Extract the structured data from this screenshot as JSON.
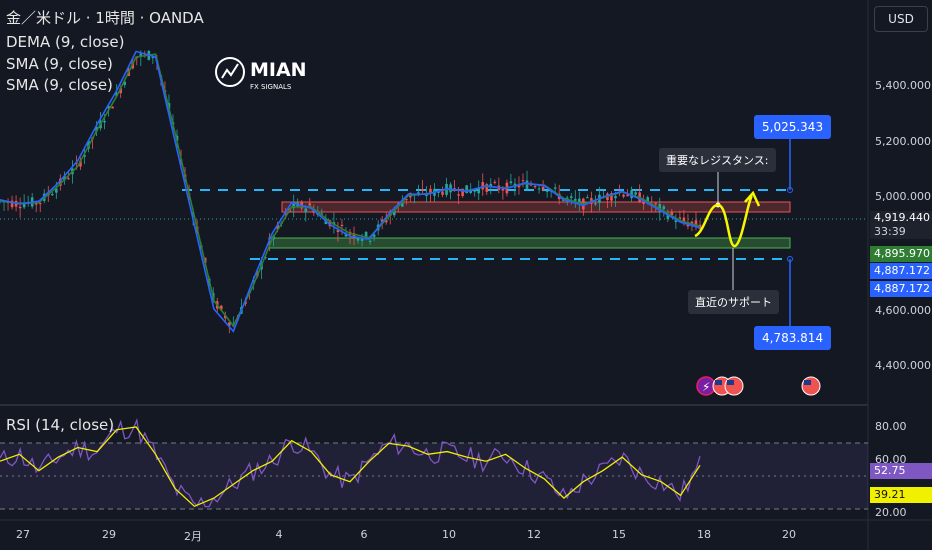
{
  "header": {
    "title": "金／米ドル · 1時間 · OANDA",
    "indicators": [
      "DEMA (9, close)",
      "SMA (9, close)",
      "SMA (9, close)"
    ],
    "currency": "USD"
  },
  "logo": {
    "name": "MIAN",
    "sub": "FX SIGNALS"
  },
  "rsi": {
    "label": "RSI (14, close)",
    "ticks": [
      "80.00",
      "60.00",
      "20.00"
    ],
    "value": "52.75",
    "ma_value": "39.21",
    "value_color": "#7e57c2",
    "ma_color": "#f0f000"
  },
  "price_axis": {
    "ticks": [
      "5,400.000",
      "5,200.000",
      "5,000.000",
      "4,600.000",
      "4,400.000"
    ],
    "current_price": "4,919.440",
    "countdown": "33:39",
    "tag_green": "4,895.970",
    "tag_blue1": "4,887.172",
    "tag_blue2": "4,887.172"
  },
  "annotations": {
    "resistance_label": "重要なレジスタンス:",
    "support_label": "直近のサポート",
    "upper_target": "5,025.343",
    "lower_target": "4,783.814"
  },
  "colors": {
    "up": "#26a69a",
    "down": "#ef5350",
    "dema": "#2962ff",
    "sma_fast": "#2e7d32",
    "resistance_zone": "#ef5350",
    "support_zone": "#4caf50",
    "projection": "#f7f700"
  },
  "icons": [
    "lightning-icon",
    "us-flag-icon",
    "us-flag-icon",
    "us-flag-icon"
  ],
  "chart_data": {
    "type": "line",
    "title": "金／米ドル · 1時間 · OANDA",
    "x_ticks": [
      "27",
      "29",
      "2月",
      "4",
      "6",
      "10",
      "12",
      "15",
      "18",
      "20"
    ],
    "ylim": [
      4300,
      5600
    ],
    "series": [
      {
        "name": "DEMA (9, close)",
        "values": [
          4990,
          4975,
          4985,
          5050,
          5130,
          5260,
          5380,
          5520,
          5500,
          5200,
          4900,
          4600,
          4520,
          4700,
          4870,
          4980,
          4960,
          4900,
          4860,
          4850,
          4940,
          5010,
          5010,
          5030,
          5020,
          5040,
          5030,
          5050,
          5040,
          4990,
          4970,
          5000,
          5020,
          4990,
          4950,
          4910,
          4890
        ]
      },
      {
        "name": "SMA (9, close)",
        "values": [
          4985,
          4978,
          4980,
          5040,
          5110,
          5240,
          5360,
          5500,
          5510,
          5230,
          4930,
          4630,
          4540,
          4680,
          4850,
          4965,
          4965,
          4910,
          4870,
          4855,
          4930,
          5005,
          5012,
          5028,
          5022,
          5038,
          5032,
          5048,
          5042,
          4995,
          4975,
          4998,
          5018,
          4995,
          4955,
          4915,
          4896
        ]
      }
    ],
    "resistance_zone": [
      4960,
      4990
    ],
    "support_zone": [
      4855,
      4880
    ],
    "levels": [
      5025.343,
      4783.814
    ],
    "rsi_series": [
      55,
      60,
      48,
      58,
      65,
      62,
      78,
      80,
      60,
      35,
      22,
      28,
      38,
      48,
      55,
      70,
      62,
      45,
      40,
      55,
      68,
      66,
      60,
      62,
      58,
      55,
      60,
      50,
      42,
      28,
      40,
      48,
      58,
      45,
      40,
      30,
      52
    ]
  }
}
